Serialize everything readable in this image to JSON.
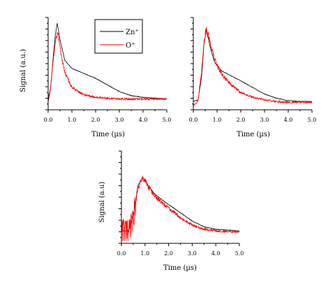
{
  "chart_data": [
    {
      "type": "line",
      "xlabel": "Time (µs)",
      "ylabel": "Signal (a.u.)",
      "xlim": [
        0,
        5
      ],
      "xticks": [
        "0.0",
        "1.0",
        "2.0",
        "3.0",
        "4.0",
        "5.0"
      ],
      "legend": {
        "placement": "top-center",
        "entries": [
          "Zn⁺",
          "O⁺"
        ]
      },
      "series": [
        {
          "name": "Zn⁺",
          "color": "#000000",
          "peak_x": 0.38,
          "x": [
            0,
            0.1,
            0.2,
            0.3,
            0.38,
            0.5,
            0.7,
            1.0,
            1.5,
            2.0,
            2.5,
            3.0,
            3.5,
            4.0,
            4.5,
            5.0
          ],
          "y": [
            0.05,
            0.2,
            0.55,
            0.85,
            1.0,
            0.8,
            0.55,
            0.45,
            0.39,
            0.33,
            0.25,
            0.17,
            0.12,
            0.1,
            0.09,
            0.08
          ]
        },
        {
          "name": "O⁺",
          "color": "#ff0000",
          "peak_x": 0.4,
          "x": [
            0,
            0.1,
            0.2,
            0.3,
            0.4,
            0.5,
            0.7,
            1.0,
            1.5,
            2.0,
            2.5,
            3.0,
            3.5,
            4.0,
            4.5,
            5.0
          ],
          "y": [
            0.1,
            0.2,
            0.5,
            0.78,
            0.9,
            0.7,
            0.4,
            0.22,
            0.13,
            0.1,
            0.09,
            0.08,
            0.08,
            0.08,
            0.08,
            0.08
          ]
        }
      ]
    },
    {
      "type": "line",
      "xlabel": "Time (µs)",
      "ylabel": "",
      "xlim": [
        0,
        5
      ],
      "xticks": [
        "0.0",
        "1.0",
        "2.0",
        "3.0",
        "4.0",
        "5.0"
      ],
      "series": [
        {
          "name": "",
          "color": "#000000",
          "peak_x": 0.55,
          "x": [
            0,
            0.2,
            0.35,
            0.45,
            0.55,
            0.7,
            0.9,
            1.2,
            1.6,
            2.0,
            2.5,
            3.0,
            3.5,
            4.0,
            4.5,
            5.0
          ],
          "y": [
            0.05,
            0.07,
            0.35,
            0.75,
            0.92,
            0.72,
            0.52,
            0.42,
            0.36,
            0.3,
            0.22,
            0.14,
            0.09,
            0.06,
            0.05,
            0.05
          ]
        },
        {
          "name": "",
          "color": "#ff0000",
          "peak_x": 0.55,
          "x": [
            0,
            0.2,
            0.35,
            0.45,
            0.55,
            0.7,
            0.9,
            1.2,
            1.6,
            2.0,
            2.5,
            3.0,
            3.5,
            4.0,
            4.5,
            5.0
          ],
          "y": [
            0.0,
            0.06,
            0.4,
            0.8,
            0.93,
            0.78,
            0.55,
            0.38,
            0.25,
            0.16,
            0.1,
            0.07,
            0.05,
            0.04,
            0.04,
            0.04
          ]
        }
      ]
    },
    {
      "type": "line",
      "xlabel": "Time (µs)",
      "ylabel": "Signal (a.u)",
      "xlim": [
        0,
        5
      ],
      "xticks": [
        "0.0",
        "1.0",
        "2.0",
        "3.0",
        "4.0",
        "5.0"
      ],
      "series": [
        {
          "name": "",
          "color": "#000000",
          "peak_x": 0.9,
          "x": [
            0,
            0.3,
            0.5,
            0.7,
            0.9,
            1.1,
            1.4,
            1.8,
            2.2,
            2.6,
            3.0,
            3.5,
            4.0,
            4.5,
            5.0
          ],
          "y": [
            0.1,
            0.1,
            0.28,
            0.65,
            0.75,
            0.66,
            0.55,
            0.46,
            0.38,
            0.3,
            0.22,
            0.15,
            0.12,
            0.11,
            0.1
          ]
        },
        {
          "name": "",
          "color": "#ff0000",
          "peak_x": 0.9,
          "x": [
            0,
            0.1,
            0.3,
            0.5,
            0.7,
            0.9,
            1.1,
            1.4,
            1.8,
            2.2,
            2.6,
            3.0,
            3.5,
            4.0,
            4.5,
            5.0
          ],
          "y": [
            0.15,
            0.1,
            0.08,
            0.25,
            0.62,
            0.74,
            0.66,
            0.52,
            0.42,
            0.33,
            0.24,
            0.17,
            0.12,
            0.1,
            0.09,
            0.09
          ]
        }
      ]
    }
  ]
}
